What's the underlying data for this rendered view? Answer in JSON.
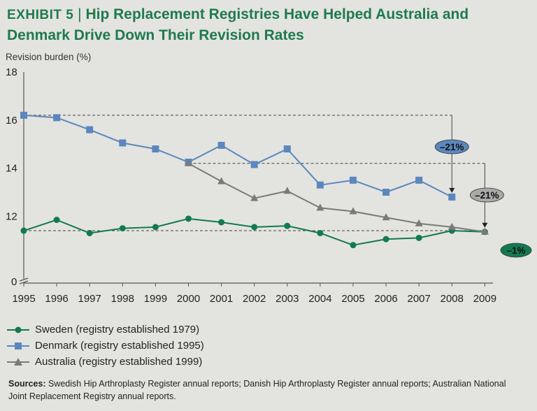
{
  "title": {
    "exhibit": "EXHIBIT 5",
    "separator": "|",
    "text": "Hip Replacement Registries Have Helped Australia and Denmark Drive Down Their Revision Rates"
  },
  "colors": {
    "sweden": "#137a4f",
    "denmark": "#5b87bd",
    "australia": "#7a7a7a",
    "title": "#1f7a4c"
  },
  "chart_data": {
    "type": "line",
    "ylabel": "Revision burden (%)",
    "x": [
      1995,
      1996,
      1997,
      1998,
      1999,
      2000,
      2001,
      2002,
      2003,
      2004,
      2005,
      2006,
      2007,
      2008,
      2009
    ],
    "y_ticks": [
      "0",
      "12",
      "14",
      "16",
      "18"
    ],
    "y_break": "axis break between 0 and 12",
    "series": [
      {
        "name": "Sweden",
        "legend": "Sweden (registry established 1979)",
        "marker": "circle",
        "values": [
          11.4,
          11.85,
          11.3,
          11.5,
          11.55,
          11.9,
          11.75,
          11.55,
          11.6,
          11.3,
          10.8,
          11.05,
          11.1,
          11.4,
          11.35
        ]
      },
      {
        "name": "Denmark",
        "legend": "Denmark (registry established 1995)",
        "marker": "square",
        "values": [
          16.2,
          16.1,
          15.6,
          15.05,
          14.8,
          14.25,
          14.95,
          14.15,
          14.8,
          13.3,
          13.5,
          13.0,
          13.5,
          12.8,
          null
        ]
      },
      {
        "name": "Australia",
        "legend": "Australia (registry established 1999)",
        "marker": "triangle",
        "values": [
          null,
          null,
          null,
          null,
          null,
          14.2,
          13.45,
          12.75,
          13.05,
          12.35,
          12.2,
          11.95,
          11.7,
          11.55,
          11.35
        ]
      }
    ],
    "annotations": [
      {
        "label": "–21%",
        "series": "Denmark",
        "from_year": 1995,
        "to_year": 2008
      },
      {
        "label": "–21%",
        "series": "Australia",
        "from_year": 2000,
        "to_year": 2009
      },
      {
        "label": "–1%",
        "series": "Sweden",
        "from_year": 1995,
        "to_year": 2009
      }
    ]
  },
  "sources": {
    "label": "Sources:",
    "text": " Swedish Hip Arthroplasty Register annual reports; Danish Hip Arthroplasty Register annual reports; Australian National Joint Replacement Registry annual reports."
  }
}
